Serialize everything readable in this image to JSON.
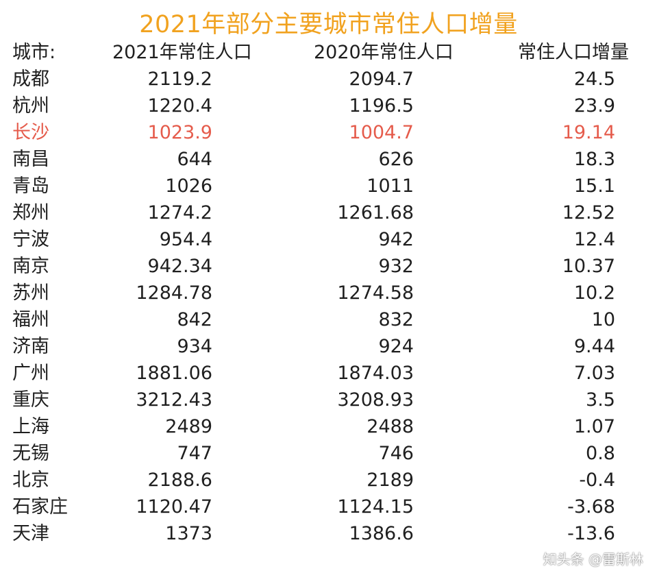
{
  "chart_data": {
    "type": "table",
    "title": "2021年部分主要城市常住人口增量",
    "columns": [
      "城市:",
      "2021年常住人口",
      "2020年常住人口",
      "常住人口增量"
    ],
    "rows": [
      [
        "成都",
        "2119.2",
        "2094.7",
        "24.5"
      ],
      [
        "杭州",
        "1220.4",
        "1196.5",
        "23.9"
      ],
      [
        "长沙",
        "1023.9",
        "1004.7",
        "19.14"
      ],
      [
        "南昌",
        "644",
        "626",
        "18.3"
      ],
      [
        "青岛",
        "1026",
        "1011",
        "15.1"
      ],
      [
        "郑州",
        "1274.2",
        "1261.68",
        "12.52"
      ],
      [
        "宁波",
        "954.4",
        "942",
        "12.4"
      ],
      [
        "南京",
        "942.34",
        "932",
        "10.37"
      ],
      [
        "苏州",
        "1284.78",
        "1274.58",
        "10.2"
      ],
      [
        "福州",
        "842",
        "832",
        "10"
      ],
      [
        "济南",
        "934",
        "924",
        "9.44"
      ],
      [
        "广州",
        "1881.06",
        "1874.03",
        "7.03"
      ],
      [
        "重庆",
        "3212.43",
        "3208.93",
        "3.5"
      ],
      [
        "上海",
        "2489",
        "2488",
        "1.07"
      ],
      [
        "无锡",
        "747",
        "746",
        "0.8"
      ],
      [
        "北京",
        "2188.6",
        "2189",
        "-0.4"
      ],
      [
        "石家庄",
        "1120.47",
        "1124.15",
        "-3.68"
      ],
      [
        "天津",
        "1373",
        "1386.6",
        "-13.6"
      ]
    ],
    "highlight_row": "长沙",
    "colors": {
      "title": "#f1a21f",
      "text": "#1f1f1f",
      "highlight": "#e55b4b"
    }
  },
  "watermark": "知头条 @雷斯林"
}
